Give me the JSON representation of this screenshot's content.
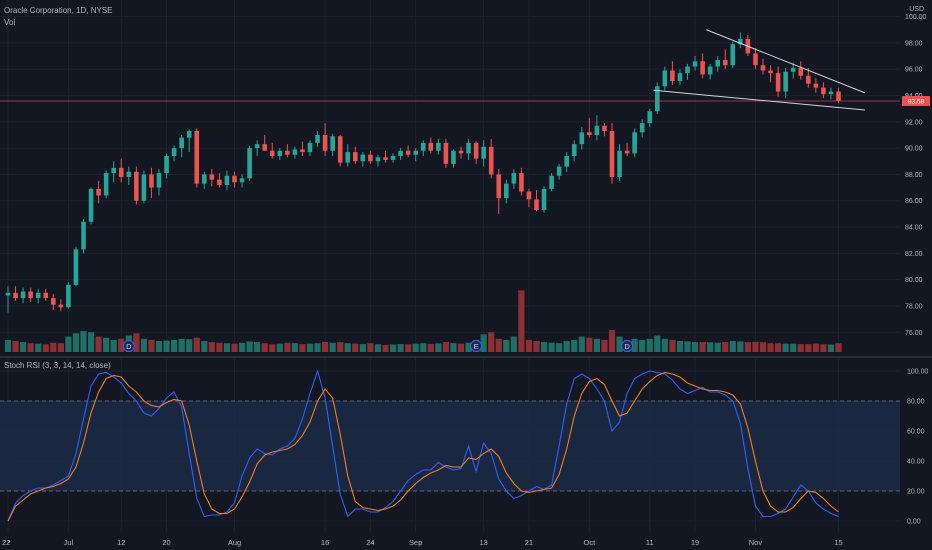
{
  "header": {
    "symbol_line": "Oracle Corporation, 1D, NYSE",
    "volume_label": "Vol",
    "currency": "USD",
    "current_price_label": "93.58"
  },
  "indicator": {
    "label": "Stoch RSI (3, 3, 14, 14, close)"
  },
  "colors": {
    "background": "#131722",
    "grid": "#1e222d",
    "up": "#26a69a",
    "down": "#ef5350",
    "up_volume": "#1f6f67",
    "down_volume": "#8e2f33",
    "k_line": "#2962ff",
    "d_line": "#f57c21",
    "band_fill": "#1c2a45",
    "trendline": "#d1d4dc",
    "price_line": "#ef5350"
  },
  "chart_data": [
    {
      "type": "candlestick",
      "ylim": [
        74.5,
        100.5
      ],
      "ytick_labels": [
        "76.00",
        "78.00",
        "80.00",
        "82.00",
        "84.00",
        "86.00",
        "88.00",
        "90.00",
        "92.00",
        "94.00",
        "96.00",
        "98.00",
        "100.00"
      ],
      "ytick_values": [
        76,
        78,
        80,
        82,
        84,
        86,
        88,
        90,
        92,
        94,
        96,
        98,
        100
      ],
      "xtick_labels": [
        "22",
        "Jul",
        "12",
        "20",
        "Aug",
        "16",
        "24",
        "Sep",
        "13",
        "21",
        "Oct",
        "11",
        "19",
        "Nov",
        "15"
      ],
      "xtick_index": [
        0,
        8,
        15,
        21,
        30,
        42,
        48,
        54,
        63,
        69,
        77,
        85,
        91,
        99,
        110
      ],
      "event_markers": [
        {
          "index": 16,
          "label": "D"
        },
        {
          "index": 62,
          "label": "E"
        },
        {
          "index": 82,
          "label": "D"
        }
      ],
      "last_price": 93.58,
      "ohlc": [
        [
          78.8,
          79.5,
          77.5,
          79.0
        ],
        [
          79.0,
          79.5,
          78.4,
          78.6
        ],
        [
          78.6,
          79.4,
          78.2,
          79.1
        ],
        [
          79.1,
          79.4,
          78.3,
          78.6
        ],
        [
          78.6,
          79.3,
          78.2,
          79.0
        ],
        [
          79.0,
          79.3,
          78.4,
          78.6
        ],
        [
          78.6,
          78.9,
          77.7,
          78.1
        ],
        [
          78.1,
          78.5,
          77.6,
          77.9
        ],
        [
          77.9,
          79.8,
          77.8,
          79.6
        ],
        [
          79.6,
          82.5,
          79.5,
          82.3
        ],
        [
          82.3,
          84.6,
          82.0,
          84.4
        ],
        [
          84.4,
          87.0,
          84.2,
          86.9
        ],
        [
          86.9,
          87.5,
          85.8,
          86.4
        ],
        [
          86.4,
          88.3,
          86.2,
          88.1
        ],
        [
          88.1,
          89.0,
          87.4,
          88.5
        ],
        [
          88.5,
          89.2,
          87.4,
          87.8
        ],
        [
          87.8,
          88.6,
          87.2,
          88.2
        ],
        [
          88.2,
          88.6,
          85.7,
          86.0
        ],
        [
          86.0,
          88.3,
          85.8,
          88.0
        ],
        [
          88.0,
          88.5,
          86.2,
          87.0
        ],
        [
          87.0,
          88.4,
          86.4,
          88.1
        ],
        [
          88.1,
          89.6,
          87.7,
          89.4
        ],
        [
          89.4,
          90.2,
          89.0,
          90.0
        ],
        [
          90.0,
          91.0,
          89.3,
          90.8
        ],
        [
          90.8,
          91.4,
          89.7,
          91.3
        ],
        [
          91.3,
          91.5,
          87.0,
          87.3
        ],
        [
          87.3,
          88.2,
          86.9,
          88.0
        ],
        [
          88.0,
          88.4,
          87.1,
          87.6
        ],
        [
          87.6,
          88.1,
          87.0,
          87.2
        ],
        [
          87.2,
          88.3,
          86.8,
          87.9
        ],
        [
          87.9,
          88.2,
          87.0,
          87.4
        ],
        [
          87.4,
          88.0,
          87.0,
          87.7
        ],
        [
          87.7,
          90.2,
          87.5,
          90.0
        ],
        [
          90.0,
          90.6,
          89.4,
          90.3
        ],
        [
          90.3,
          91.0,
          89.8,
          89.8
        ],
        [
          89.8,
          90.4,
          89.2,
          89.4
        ],
        [
          89.4,
          90.0,
          89.1,
          89.8
        ],
        [
          89.8,
          90.3,
          89.3,
          89.5
        ],
        [
          89.5,
          90.1,
          89.2,
          89.9
        ],
        [
          89.9,
          90.5,
          89.4,
          89.7
        ],
        [
          89.7,
          90.6,
          89.4,
          90.4
        ],
        [
          90.4,
          91.3,
          90.1,
          91.0
        ],
        [
          91.0,
          91.9,
          89.4,
          89.8
        ],
        [
          89.8,
          91.1,
          89.4,
          90.9
        ],
        [
          90.9,
          91.0,
          88.6,
          88.9
        ],
        [
          88.9,
          90.3,
          88.6,
          89.7
        ],
        [
          89.7,
          90.1,
          88.8,
          89.0
        ],
        [
          89.0,
          89.7,
          88.6,
          89.5
        ],
        [
          89.5,
          89.8,
          88.8,
          89.0
        ],
        [
          89.0,
          89.5,
          88.6,
          89.3
        ],
        [
          89.3,
          89.8,
          88.9,
          89.1
        ],
        [
          89.1,
          89.6,
          88.9,
          89.4
        ],
        [
          89.4,
          90.0,
          89.1,
          89.8
        ],
        [
          89.8,
          90.2,
          89.3,
          89.5
        ],
        [
          89.5,
          90.0,
          89.0,
          89.8
        ],
        [
          89.8,
          90.6,
          89.4,
          90.4
        ],
        [
          90.4,
          90.8,
          89.6,
          89.8
        ],
        [
          89.8,
          90.7,
          89.5,
          90.4
        ],
        [
          90.4,
          90.7,
          88.5,
          88.8
        ],
        [
          88.8,
          89.9,
          88.5,
          89.8
        ],
        [
          89.8,
          90.1,
          89.2,
          89.6
        ],
        [
          89.6,
          90.7,
          89.1,
          90.4
        ],
        [
          90.4,
          90.5,
          88.8,
          89.2
        ],
        [
          89.2,
          90.6,
          88.6,
          90.1
        ],
        [
          90.1,
          90.7,
          87.7,
          88.0
        ],
        [
          88.0,
          88.4,
          85.0,
          86.2
        ],
        [
          86.2,
          87.6,
          85.8,
          87.3
        ],
        [
          87.3,
          88.4,
          86.9,
          88.1
        ],
        [
          88.1,
          88.5,
          86.4,
          86.7
        ],
        [
          86.7,
          86.9,
          85.5,
          86.1
        ],
        [
          86.1,
          86.8,
          85.2,
          85.3
        ],
        [
          85.3,
          87.1,
          85.1,
          86.9
        ],
        [
          86.9,
          88.1,
          86.7,
          87.9
        ],
        [
          87.9,
          88.8,
          87.6,
          88.6
        ],
        [
          88.6,
          89.7,
          88.2,
          89.4
        ],
        [
          89.4,
          90.6,
          89.0,
          90.3
        ],
        [
          90.3,
          91.6,
          89.9,
          91.2
        ],
        [
          91.2,
          92.3,
          90.8,
          91.0
        ],
        [
          91.0,
          92.5,
          90.6,
          91.7
        ],
        [
          91.7,
          91.9,
          90.9,
          91.3
        ],
        [
          91.3,
          91.9,
          87.3,
          87.8
        ],
        [
          87.8,
          90.3,
          87.5,
          89.8
        ],
        [
          89.8,
          90.4,
          89.4,
          89.6
        ],
        [
          89.6,
          91.5,
          89.3,
          91.2
        ],
        [
          91.2,
          92.2,
          90.8,
          91.9
        ],
        [
          91.9,
          93.0,
          91.6,
          92.8
        ],
        [
          92.8,
          95.0,
          92.6,
          94.7
        ],
        [
          94.7,
          96.2,
          94.4,
          95.9
        ],
        [
          95.9,
          96.6,
          94.8,
          95.1
        ],
        [
          95.1,
          96.0,
          94.8,
          95.7
        ],
        [
          95.7,
          96.4,
          95.2,
          96.2
        ],
        [
          96.2,
          97.0,
          95.9,
          96.6
        ],
        [
          96.6,
          97.2,
          95.3,
          95.6
        ],
        [
          95.6,
          96.4,
          95.2,
          96.2
        ],
        [
          96.2,
          97.0,
          95.8,
          96.7
        ],
        [
          96.7,
          97.5,
          96.0,
          96.3
        ],
        [
          96.3,
          98.1,
          96.1,
          97.9
        ],
        [
          97.9,
          98.8,
          97.6,
          98.3
        ],
        [
          98.3,
          98.6,
          97.0,
          97.2
        ],
        [
          97.2,
          97.6,
          96.0,
          96.3
        ],
        [
          96.3,
          96.8,
          95.6,
          95.9
        ],
        [
          95.9,
          96.3,
          95.0,
          95.7
        ],
        [
          95.7,
          96.2,
          93.9,
          94.3
        ],
        [
          94.3,
          96.1,
          93.8,
          95.8
        ],
        [
          95.8,
          96.5,
          95.3,
          96.1
        ],
        [
          96.1,
          96.6,
          95.2,
          95.5
        ],
        [
          95.5,
          96.1,
          94.6,
          94.9
        ],
        [
          94.9,
          95.3,
          94.2,
          94.6
        ],
        [
          94.6,
          95.0,
          93.8,
          94.1
        ],
        [
          94.1,
          94.6,
          93.7,
          94.3
        ],
        [
          94.3,
          94.6,
          93.4,
          93.6
        ]
      ],
      "volume_relative": [
        0.55,
        0.5,
        0.45,
        0.4,
        0.38,
        0.35,
        0.42,
        0.4,
        0.7,
        0.85,
        0.95,
        0.9,
        0.7,
        0.65,
        0.55,
        0.6,
        0.75,
        0.85,
        0.6,
        0.55,
        0.5,
        0.52,
        0.55,
        0.6,
        0.58,
        0.65,
        0.5,
        0.45,
        0.42,
        0.4,
        0.38,
        0.42,
        0.48,
        0.45,
        0.4,
        0.35,
        0.38,
        0.42,
        0.4,
        0.36,
        0.38,
        0.4,
        0.46,
        0.42,
        0.45,
        0.4,
        0.38,
        0.36,
        0.4,
        0.35,
        0.32,
        0.34,
        0.36,
        0.35,
        0.38,
        0.4,
        0.37,
        0.39,
        0.45,
        0.4,
        0.38,
        0.42,
        0.55,
        0.8,
        0.9,
        0.6,
        0.55,
        0.7,
        2.8,
        0.55,
        0.5,
        0.45,
        0.42,
        0.4,
        0.5,
        0.55,
        0.7,
        0.65,
        0.6,
        0.55,
        1.0,
        0.7,
        0.55,
        0.6,
        0.55,
        0.6,
        0.75,
        0.6,
        0.55,
        0.5,
        0.48,
        0.45,
        0.45,
        0.44,
        0.42,
        0.45,
        0.5,
        0.48,
        0.45,
        0.46,
        0.44,
        0.4,
        0.4,
        0.38,
        0.38,
        0.36,
        0.36,
        0.38,
        0.35,
        0.34,
        0.4
      ]
    },
    {
      "type": "line",
      "ylim": [
        -6,
        106
      ],
      "ytick_labels": [
        "0.00",
        "20.00",
        "40.00",
        "60.00",
        "80.00",
        "100.00"
      ],
      "ytick_values": [
        0,
        20,
        40,
        60,
        80,
        100
      ],
      "bands": {
        "upper": 80,
        "lower": 20
      },
      "series": [
        {
          "key": "k",
          "values": [
            0,
            12,
            17,
            20,
            22,
            22,
            24,
            27,
            30,
            45,
            68,
            90,
            98,
            99,
            96,
            92,
            85,
            80,
            72,
            70,
            75,
            82,
            86,
            76,
            45,
            15,
            3,
            4,
            4,
            6,
            12,
            30,
            42,
            48,
            45,
            44,
            48,
            50,
            55,
            68,
            85,
            100,
            82,
            50,
            18,
            3,
            8,
            8,
            6,
            6,
            9,
            13,
            20,
            27,
            31,
            34,
            34,
            39,
            36,
            34,
            35,
            50,
            33,
            52,
            45,
            28,
            20,
            15,
            17,
            20,
            23,
            21,
            24,
            50,
            78,
            95,
            98,
            95,
            88,
            80,
            60,
            66,
            85,
            95,
            98,
            100,
            99,
            98,
            94,
            88,
            85,
            87,
            89,
            86,
            86,
            84,
            80,
            65,
            35,
            10,
            3,
            3,
            5,
            8,
            16,
            24,
            20,
            12,
            8,
            5,
            3
          ]
        },
        {
          "key": "d",
          "values": [
            0,
            10,
            14,
            18,
            20,
            22,
            23,
            25,
            28,
            36,
            52,
            72,
            86,
            95,
            97,
            96,
            90,
            86,
            80,
            77,
            76,
            79,
            81,
            80,
            64,
            40,
            18,
            8,
            5,
            5,
            8,
            16,
            26,
            38,
            44,
            46,
            47,
            48,
            51,
            57,
            66,
            80,
            88,
            82,
            58,
            30,
            13,
            9,
            8,
            7,
            8,
            10,
            14,
            20,
            25,
            29,
            32,
            34,
            37,
            36,
            36,
            42,
            41,
            45,
            48,
            43,
            32,
            25,
            20,
            19,
            20,
            21,
            22,
            31,
            48,
            70,
            85,
            93,
            95,
            91,
            80,
            70,
            72,
            80,
            88,
            93,
            97,
            99,
            98,
            96,
            92,
            90,
            88,
            87,
            87,
            86,
            84,
            78,
            62,
            40,
            20,
            10,
            6,
            6,
            9,
            15,
            20,
            19,
            15,
            10,
            6
          ]
        }
      ]
    }
  ]
}
